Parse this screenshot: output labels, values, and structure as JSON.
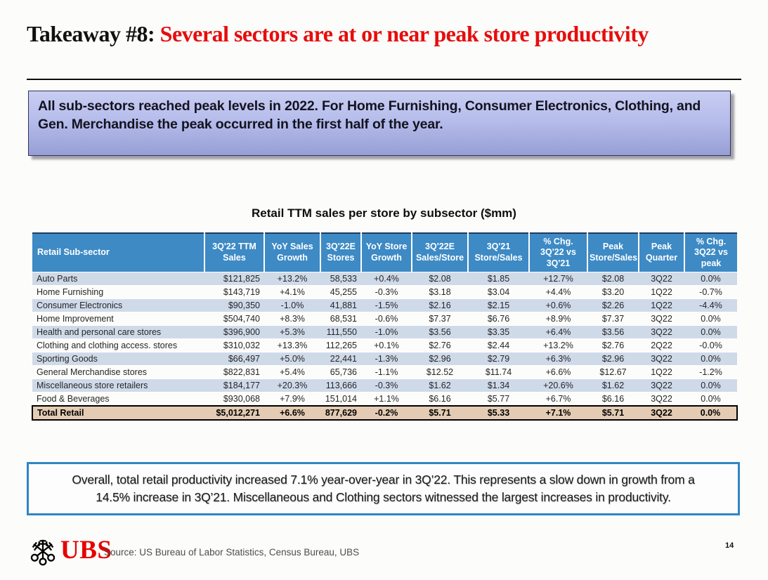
{
  "slide": {
    "title_prefix": "Takeaway #8: ",
    "title_highlight": "Several sectors are at or near peak store productivity",
    "page_number": "14"
  },
  "callout_top": {
    "text": "All sub-sectors reached peak levels in 2022. For Home Furnishing, Consumer Electronics, Clothing, and Gen. Merchandise the peak occurred in the first half of the year."
  },
  "callout_bottom": {
    "text": "Overall, total retail productivity increased 7.1% year-over-year in 3Q’22. This represents a slow down in growth from a 14.5% increase in 3Q’21. Miscellaneous and Clothing sectors witnessed the largest increases in productivity."
  },
  "footer": {
    "logo_text": "UBS",
    "source": "Source: US Bureau of Labor Statistics, Census Bureau, UBS"
  },
  "colors": {
    "title_red": "#e60d0d",
    "table_header_bg": "#3d8ac5",
    "row_stripe": "#cfdae9",
    "total_row_bg": "#e4ccb4",
    "negative_value": "#d0505c",
    "callout_border": "#2e86c5",
    "gradient_top": "#c8cdf2",
    "gradient_bottom": "#969fd5",
    "logo_red": "#e60000"
  },
  "chart_data": {
    "type": "table",
    "title": "Retail TTM sales per store by subsector ($mm)",
    "columns": [
      "Retail Sub-sector",
      "3Q'22 TTM\nSales",
      "YoY Sales\nGrowth",
      "3Q'22E\nStores",
      "YoY Store\nGrowth",
      "3Q'22E\nSales/Store",
      "3Q'21\nStore/Sales",
      "% Chg.\n3Q'22 vs\n3Q'21",
      "Peak\nStore/Sales",
      "Peak\nQuarter",
      "% Chg.\n3Q22 vs\npeak"
    ],
    "rows": [
      [
        "Auto Parts",
        "$121,825",
        "+13.2%",
        "58,533",
        "+0.4%",
        "$2.08",
        "$1.85",
        "+12.7%",
        "$2.08",
        "3Q22",
        "0.0%"
      ],
      [
        "Home Furnishing",
        "$143,719",
        "+4.1%",
        "45,255",
        "-0.3%",
        "$3.18",
        "$3.04",
        "+4.4%",
        "$3.20",
        "1Q22",
        "-0.7%"
      ],
      [
        "Consumer Electronics",
        "$90,350",
        "-1.0%",
        "41,881",
        "-1.5%",
        "$2.16",
        "$2.15",
        "+0.6%",
        "$2.26",
        "1Q22",
        "-4.4%"
      ],
      [
        "Home Improvement",
        "$504,740",
        "+8.3%",
        "68,531",
        "-0.6%",
        "$7.37",
        "$6.76",
        "+8.9%",
        "$7.37",
        "3Q22",
        "0.0%"
      ],
      [
        "Health and personal care stores",
        "$396,900",
        "+5.3%",
        "111,550",
        "-1.0%",
        "$3.56",
        "$3.35",
        "+6.4%",
        "$3.56",
        "3Q22",
        "0.0%"
      ],
      [
        "Clothing and clothing access. stores",
        "$310,032",
        "+13.3%",
        "112,265",
        "+0.1%",
        "$2.76",
        "$2.44",
        "+13.2%",
        "$2.76",
        "2Q22",
        "-0.0%"
      ],
      [
        "Sporting Goods",
        "$66,497",
        "+5.0%",
        "22,441",
        "-1.3%",
        "$2.96",
        "$2.79",
        "+6.3%",
        "$2.96",
        "3Q22",
        "0.0%"
      ],
      [
        "General Merchandise stores",
        "$822,831",
        "+5.4%",
        "65,736",
        "-1.1%",
        "$12.52",
        "$11.74",
        "+6.6%",
        "$12.67",
        "1Q22",
        "-1.2%"
      ],
      [
        "Miscellaneous store retailers",
        "$184,177",
        "+20.3%",
        "113,666",
        "-0.3%",
        "$1.62",
        "$1.34",
        "+20.6%",
        "$1.62",
        "3Q22",
        "0.0%"
      ],
      [
        "Food & Beverages",
        "$930,068",
        "+7.9%",
        "151,014",
        "+1.1%",
        "$6.16",
        "$5.77",
        "+6.7%",
        "$6.16",
        "3Q22",
        "0.0%"
      ]
    ],
    "total_row": [
      "Total Retail",
      "$5,012,271",
      "+6.6%",
      "877,629",
      "-0.2%",
      "$5.71",
      "$5.33",
      "+7.1%",
      "$5.71",
      "3Q22",
      "0.0%"
    ]
  }
}
